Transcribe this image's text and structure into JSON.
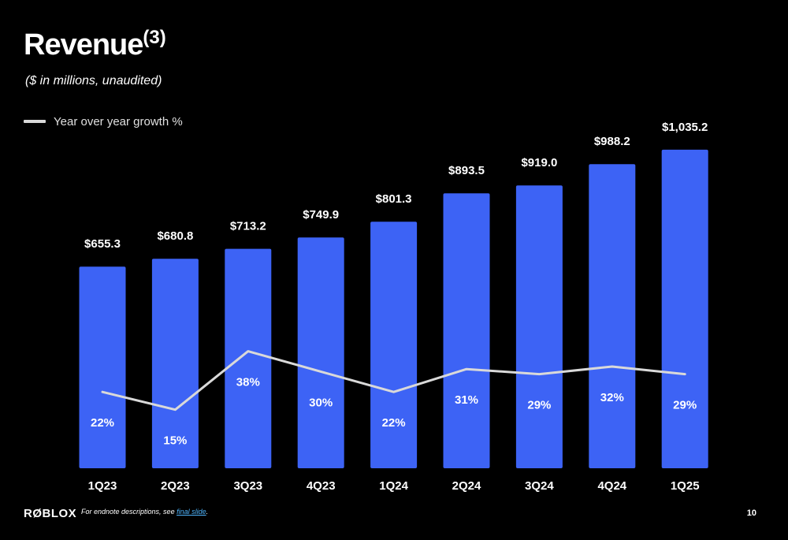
{
  "slide": {
    "title": "Revenue",
    "title_footnote": "(3)",
    "subtitle": "($ in millions, unaudited)"
  },
  "footer": {
    "logo": "RØBLOX",
    "note_prefix": "For endnote descriptions, see ",
    "note_link": "final slide",
    "note_suffix": ".",
    "page_number": "10"
  },
  "chart_data": {
    "type": "bar",
    "categories": [
      "1Q23",
      "2Q23",
      "3Q23",
      "4Q23",
      "1Q24",
      "2Q24",
      "3Q24",
      "4Q24",
      "1Q25"
    ],
    "series": [
      {
        "values": [
          655.3,
          680.8,
          713.2,
          749.9,
          801.3,
          893.5,
          919.0,
          988.2,
          1035.2
        ],
        "value_labels": [
          "$655.3",
          "$680.8",
          "$713.2",
          "$749.9",
          "$801.3",
          "$893.5",
          "$919.0",
          "$988.2",
          "$1,035.2"
        ],
        "color": "#3d63f5"
      },
      {
        "name": "Year over year growth %",
        "type": "line",
        "values": [
          22,
          15,
          38,
          30,
          22,
          31,
          29,
          32,
          29
        ],
        "value_labels": [
          "22%",
          "15%",
          "38%",
          "30%",
          "22%",
          "31%",
          "29%",
          "32%",
          "29%"
        ],
        "color": "#d9d9d9"
      }
    ],
    "legend": "top-left",
    "grid": false
  }
}
